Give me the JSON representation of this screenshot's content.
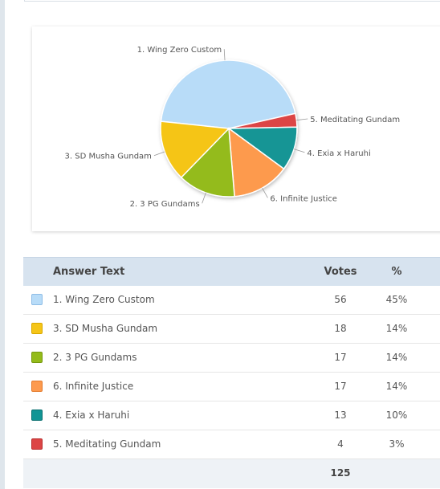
{
  "table": {
    "header": {
      "answer_text": "Answer Text",
      "votes": "Votes",
      "percent": "%"
    },
    "rows": [
      {
        "label": "1. Wing Zero Custom",
        "votes": "56",
        "percent": "45%",
        "color": "#b8dcf8",
        "border": "#8fbde6"
      },
      {
        "label": "3. SD Musha Gundam",
        "votes": "18",
        "percent": "14%",
        "color": "#f5c518",
        "border": "#d9a800"
      },
      {
        "label": "2. 3 PG Gundams",
        "votes": "17",
        "percent": "14%",
        "color": "#94bb1a",
        "border": "#76990f"
      },
      {
        "label": "6. Infinite Justice",
        "votes": "17",
        "percent": "14%",
        "color": "#fd9a4e",
        "border": "#e37a2b"
      },
      {
        "label": "4. Exia x Haruhi",
        "votes": "13",
        "percent": "10%",
        "color": "#129595",
        "border": "#0a7070"
      },
      {
        "label": "5. Meditating Gundam",
        "votes": "4",
        "percent": "3%",
        "color": "#dc4545",
        "border": "#b92e2e"
      }
    ],
    "footer": {
      "total_votes": "125"
    }
  },
  "chart_data": {
    "type": "pie",
    "slices": [
      {
        "label": "1. Wing Zero Custom",
        "value": 56,
        "color": "#b8dcf8"
      },
      {
        "label": "5. Meditating Gundam",
        "value": 4,
        "color": "#dc4545"
      },
      {
        "label": "4. Exia x Haruhi",
        "value": 13,
        "color": "#129595"
      },
      {
        "label": "6. Infinite Justice",
        "value": 17,
        "color": "#fd9a4e"
      },
      {
        "label": "2. 3 PG Gundams",
        "value": 17,
        "color": "#94bb1a"
      },
      {
        "label": "3. SD Musha Gundam",
        "value": 18,
        "color": "#f5c518"
      }
    ]
  }
}
